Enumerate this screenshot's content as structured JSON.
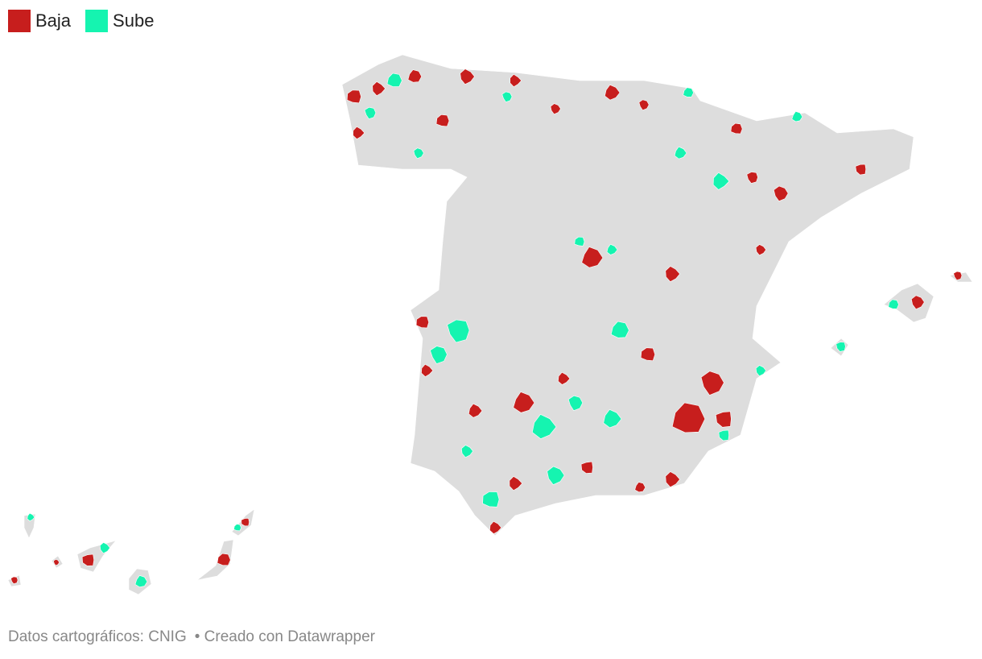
{
  "legend": [
    {
      "label": "Baja",
      "color": "#c71e1d"
    },
    {
      "label": "Sube",
      "color": "#15f4b0"
    }
  ],
  "footer": {
    "source": "Datos cartográficos: CNIG",
    "credit": "• Creado con Datawrapper"
  }
}
